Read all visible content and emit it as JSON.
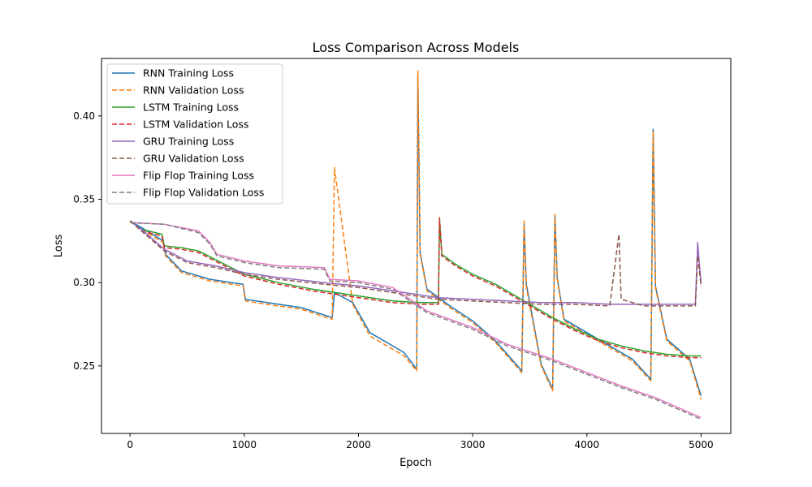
{
  "chart_data": {
    "type": "line",
    "title": "Loss Comparison Across Models",
    "xlabel": "Epoch",
    "ylabel": "Loss",
    "xlim": [
      -250,
      5260
    ],
    "ylim": [
      0.2095,
      0.4345
    ],
    "xticks": [
      0,
      1000,
      2000,
      3000,
      4000,
      5000
    ],
    "xtick_labels": [
      "0",
      "1000",
      "2000",
      "3000",
      "4000",
      "5000"
    ],
    "yticks": [
      0.25,
      0.3,
      0.35,
      0.4
    ],
    "ytick_labels": [
      "0.25",
      "0.30",
      "0.35",
      "0.40"
    ],
    "grid": false,
    "legend_position": "top-left",
    "series": [
      {
        "name": "RNN Training Loss",
        "color": "#1f77b4",
        "dash": "solid",
        "x": [
          0,
          100,
          290,
          310,
          450,
          700,
          990,
          1010,
          1200,
          1500,
          1770,
          1790,
          1950,
          2100,
          2400,
          2510,
          2520,
          2540,
          2600,
          2800,
          3000,
          3200,
          3430,
          3450,
          3470,
          3600,
          3700,
          3720,
          3740,
          3800,
          4000,
          4200,
          4400,
          4560,
          4580,
          4600,
          4700,
          4900,
          5000
        ],
        "y": [
          0.337,
          0.333,
          0.325,
          0.317,
          0.307,
          0.302,
          0.299,
          0.29,
          0.288,
          0.285,
          0.279,
          0.294,
          0.288,
          0.27,
          0.258,
          0.248,
          0.424,
          0.318,
          0.296,
          0.286,
          0.277,
          0.265,
          0.247,
          0.335,
          0.299,
          0.251,
          0.236,
          0.34,
          0.303,
          0.278,
          0.27,
          0.262,
          0.254,
          0.242,
          0.392,
          0.298,
          0.266,
          0.254,
          0.232
        ]
      },
      {
        "name": "RNN Validation Loss",
        "color": "#ff7f0e",
        "dash": "6,3",
        "x": [
          0,
          100,
          290,
          310,
          450,
          700,
          990,
          1010,
          1200,
          1500,
          1770,
          1790,
          1950,
          2100,
          2400,
          2510,
          2520,
          2540,
          2600,
          2800,
          3000,
          3200,
          3430,
          3450,
          3470,
          3600,
          3700,
          3720,
          3740,
          3800,
          4000,
          4200,
          4400,
          4560,
          4580,
          4600,
          4700,
          4900,
          5000
        ],
        "y": [
          0.337,
          0.332,
          0.324,
          0.316,
          0.306,
          0.301,
          0.298,
          0.289,
          0.287,
          0.284,
          0.278,
          0.369,
          0.287,
          0.268,
          0.256,
          0.247,
          0.427,
          0.317,
          0.295,
          0.285,
          0.276,
          0.264,
          0.246,
          0.337,
          0.297,
          0.25,
          0.235,
          0.341,
          0.302,
          0.277,
          0.269,
          0.261,
          0.253,
          0.241,
          0.391,
          0.297,
          0.265,
          0.253,
          0.23
        ]
      },
      {
        "name": "LSTM Training Loss",
        "color": "#2ca02c",
        "dash": "solid",
        "x": [
          0,
          100,
          280,
          300,
          450,
          600,
          800,
          1000,
          1300,
          1600,
          2000,
          2300,
          2550,
          2700,
          2710,
          2730,
          2850,
          3000,
          3200,
          3300,
          3500,
          3700,
          3900,
          4100,
          4300,
          4500,
          4700,
          4900,
          5000
        ],
        "y": [
          0.337,
          0.332,
          0.329,
          0.322,
          0.321,
          0.319,
          0.312,
          0.305,
          0.3,
          0.296,
          0.292,
          0.289,
          0.288,
          0.288,
          0.338,
          0.317,
          0.311,
          0.305,
          0.299,
          0.295,
          0.287,
          0.279,
          0.272,
          0.266,
          0.262,
          0.259,
          0.257,
          0.256,
          0.256
        ]
      },
      {
        "name": "LSTM Validation Loss",
        "color": "#d62728",
        "dash": "6,3",
        "x": [
          0,
          100,
          280,
          300,
          450,
          600,
          800,
          1000,
          1300,
          1600,
          2000,
          2300,
          2550,
          2700,
          2710,
          2730,
          2850,
          3000,
          3200,
          3300,
          3500,
          3700,
          3900,
          4100,
          4300,
          4500,
          4700,
          4900,
          5000
        ],
        "y": [
          0.337,
          0.331,
          0.328,
          0.321,
          0.32,
          0.318,
          0.311,
          0.304,
          0.299,
          0.295,
          0.291,
          0.288,
          0.287,
          0.287,
          0.339,
          0.316,
          0.31,
          0.304,
          0.298,
          0.294,
          0.286,
          0.278,
          0.271,
          0.265,
          0.261,
          0.258,
          0.256,
          0.255,
          0.255
        ]
      },
      {
        "name": "GRU Training Loss",
        "color": "#9467bd",
        "dash": "solid",
        "x": [
          0,
          100,
          300,
          500,
          750,
          1000,
          1300,
          1700,
          2000,
          2300,
          2700,
          3000,
          3300,
          3600,
          3900,
          4200,
          4500,
          4800,
          4950,
          4970,
          5000
        ],
        "y": [
          0.337,
          0.332,
          0.32,
          0.313,
          0.31,
          0.306,
          0.303,
          0.3,
          0.298,
          0.295,
          0.291,
          0.29,
          0.289,
          0.288,
          0.288,
          0.287,
          0.287,
          0.287,
          0.287,
          0.324,
          0.299
        ]
      },
      {
        "name": "GRU Validation Loss",
        "color": "#8c564b",
        "dash": "6,3",
        "x": [
          0,
          100,
          300,
          500,
          750,
          1000,
          1300,
          1700,
          2000,
          2300,
          2700,
          3000,
          3300,
          3600,
          3900,
          4200,
          4280,
          4300,
          4500,
          4800,
          4950,
          4970,
          5000
        ],
        "y": [
          0.337,
          0.331,
          0.319,
          0.312,
          0.309,
          0.305,
          0.302,
          0.299,
          0.297,
          0.294,
          0.29,
          0.289,
          0.288,
          0.287,
          0.287,
          0.286,
          0.329,
          0.29,
          0.286,
          0.286,
          0.286,
          0.316,
          0.298
        ]
      },
      {
        "name": "Flip Flop Training Loss",
        "color": "#e377c2",
        "dash": "solid",
        "x": [
          0,
          300,
          600,
          700,
          760,
          1000,
          1300,
          1700,
          1750,
          2000,
          2300,
          2600,
          3000,
          3300,
          3700,
          4000,
          4300,
          4600,
          5000
        ],
        "y": [
          0.336,
          0.335,
          0.331,
          0.324,
          0.317,
          0.313,
          0.31,
          0.309,
          0.302,
          0.301,
          0.297,
          0.283,
          0.273,
          0.263,
          0.254,
          0.246,
          0.238,
          0.231,
          0.219
        ]
      },
      {
        "name": "Flip Flop Validation Loss",
        "color": "#7f7f7f",
        "dash": "6,3",
        "x": [
          0,
          300,
          600,
          700,
          760,
          1000,
          1300,
          1700,
          1750,
          2000,
          2300,
          2600,
          3000,
          3300,
          3700,
          4000,
          4300,
          4600,
          5000
        ],
        "y": [
          0.336,
          0.335,
          0.33,
          0.323,
          0.316,
          0.312,
          0.309,
          0.308,
          0.301,
          0.3,
          0.296,
          0.282,
          0.272,
          0.262,
          0.253,
          0.245,
          0.237,
          0.23,
          0.218
        ]
      }
    ]
  }
}
